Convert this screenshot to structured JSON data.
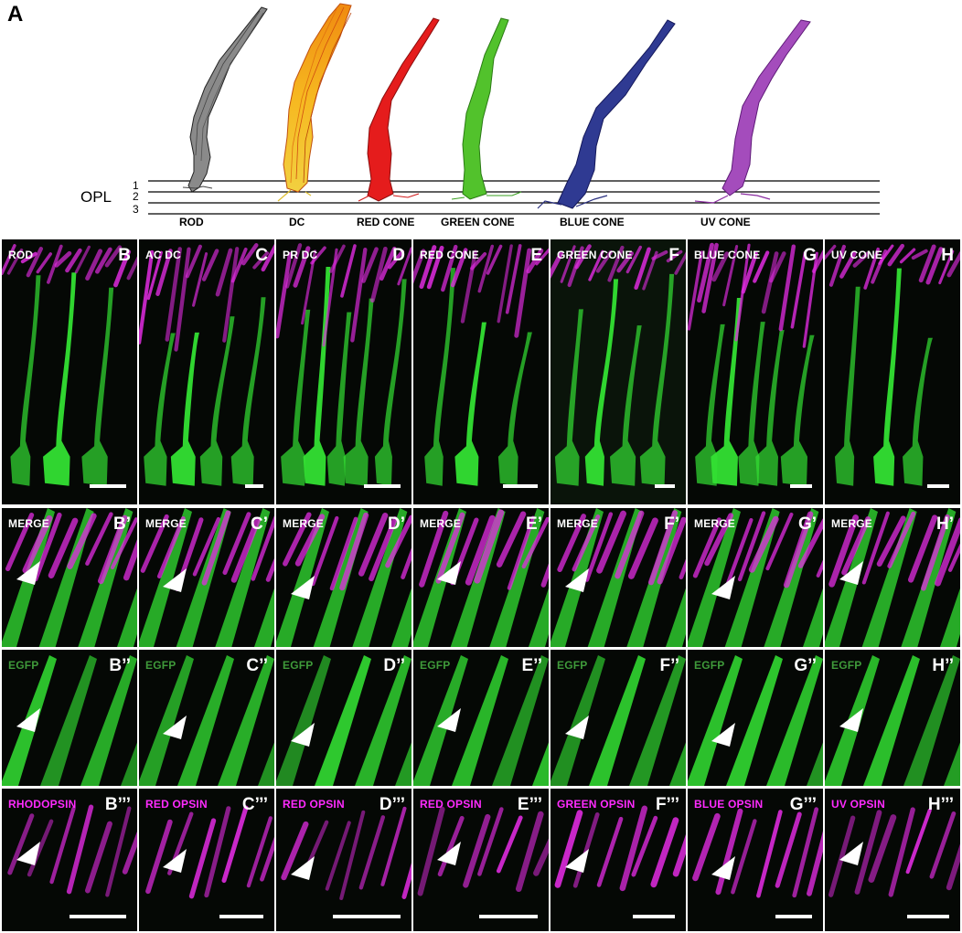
{
  "figure_label": "A",
  "opl_label": "OPL",
  "layer_numbers": [
    "1",
    "2",
    "3"
  ],
  "cell_types": [
    {
      "label": "ROD",
      "color": "#7a7a7a"
    },
    {
      "label": "DC",
      "color": "#f0a020"
    },
    {
      "label": "RED CONE",
      "color": "#e01818"
    },
    {
      "label": "GREEN CONE",
      "color": "#4ab828"
    },
    {
      "label": "BLUE CONE",
      "color": "#2e3888"
    },
    {
      "label": "UV CONE",
      "color": "#9a3cb0"
    }
  ],
  "columns": [
    {
      "title": "ROD",
      "rows": [
        "B",
        "B’",
        "B’’",
        "B’’’"
      ],
      "opsin": "RHODOPSIN"
    },
    {
      "title": "AC DC",
      "rows": [
        "C",
        "C’",
        "C’’",
        "C’’’"
      ],
      "opsin": "RED OPSIN"
    },
    {
      "title": "PR DC",
      "rows": [
        "D",
        "D’",
        "D’’",
        "D’’’"
      ],
      "opsin": "RED OPSIN"
    },
    {
      "title": "RED CONE",
      "rows": [
        "E",
        "E’",
        "E’’",
        "E’’’"
      ],
      "opsin": "RED OPSIN"
    },
    {
      "title": "GREEN CONE",
      "rows": [
        "F",
        "F’",
        "F’’",
        "F’’’"
      ],
      "opsin": "GREEN OPSIN"
    },
    {
      "title": "BLUE CONE",
      "rows": [
        "G",
        "G’",
        "G’’",
        "G’’’"
      ],
      "opsin": "BLUE OPSIN"
    },
    {
      "title": "UV CONE",
      "rows": [
        "H",
        "H’",
        "H’’",
        "H’’’"
      ],
      "opsin": "UV OPSIN"
    }
  ],
  "row_labels": {
    "merge": "MERGE",
    "egfp": "EGFP"
  },
  "colors": {
    "egfp": "#33e033",
    "opsin": "#e22ce2",
    "background": "#050805"
  }
}
